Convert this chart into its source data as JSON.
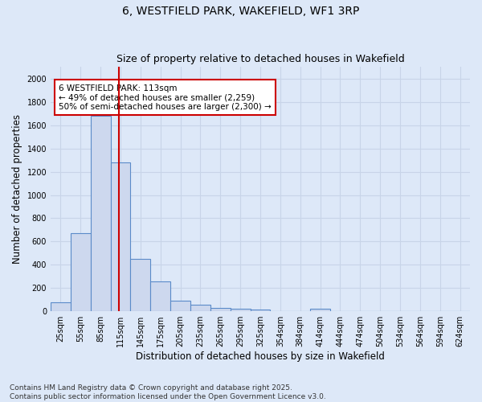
{
  "title": "6, WESTFIELD PARK, WAKEFIELD, WF1 3RP",
  "subtitle": "Size of property relative to detached houses in Wakefield",
  "xlabel": "Distribution of detached houses by size in Wakefield",
  "ylabel": "Number of detached properties",
  "categories": [
    "25sqm",
    "55sqm",
    "85sqm",
    "115sqm",
    "145sqm",
    "175sqm",
    "205sqm",
    "235sqm",
    "265sqm",
    "295sqm",
    "325sqm",
    "354sqm",
    "384sqm",
    "414sqm",
    "444sqm",
    "474sqm",
    "504sqm",
    "534sqm",
    "564sqm",
    "594sqm",
    "624sqm"
  ],
  "values": [
    75,
    670,
    1680,
    1280,
    450,
    260,
    90,
    60,
    30,
    20,
    15,
    0,
    0,
    25,
    0,
    0,
    0,
    0,
    0,
    0,
    0
  ],
  "bar_color": "#cdd8ee",
  "bar_edge_color": "#5b8bc9",
  "annotation_text": "6 WESTFIELD PARK: 113sqm\n← 49% of detached houses are smaller (2,259)\n50% of semi-detached houses are larger (2,300) →",
  "annotation_box_color": "#ffffff",
  "annotation_box_edge": "#cc0000",
  "red_line_color": "#cc0000",
  "red_line_x": 2.93,
  "ylim": [
    0,
    2100
  ],
  "yticks": [
    0,
    200,
    400,
    600,
    800,
    1000,
    1200,
    1400,
    1600,
    1800,
    2000
  ],
  "grid_color": "#c8d4e8",
  "bg_color": "#dde8f8",
  "title_fontsize": 10,
  "subtitle_fontsize": 9,
  "axis_label_fontsize": 8.5,
  "tick_fontsize": 7,
  "footer_fontsize": 6.5,
  "footer": "Contains HM Land Registry data © Crown copyright and database right 2025.\nContains public sector information licensed under the Open Government Licence v3.0."
}
